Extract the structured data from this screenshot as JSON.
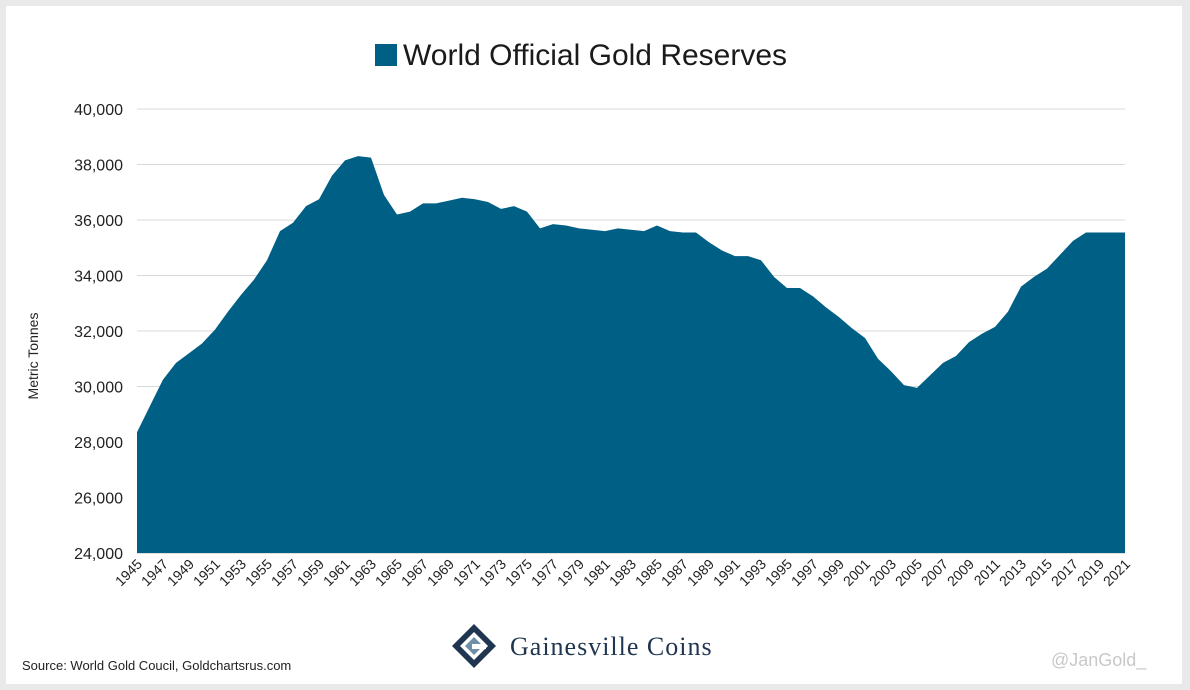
{
  "chart_data": {
    "type": "area",
    "title": "World Official Gold Reserves",
    "ylabel": "Metric Tonnes",
    "xlabel": "",
    "ylim": [
      24000,
      40000
    ],
    "yticks": [
      "24,000",
      "26,000",
      "28,000",
      "30,000",
      "32,000",
      "34,000",
      "36,000",
      "38,000",
      "40,000"
    ],
    "ytick_values": [
      24000,
      26000,
      28000,
      30000,
      32000,
      34000,
      36000,
      38000,
      40000
    ],
    "grid": true,
    "legend": "top-center",
    "color": "#005f84",
    "x": [
      1945,
      1946,
      1947,
      1948,
      1949,
      1950,
      1951,
      1952,
      1953,
      1954,
      1955,
      1956,
      1957,
      1958,
      1959,
      1960,
      1961,
      1962,
      1963,
      1964,
      1965,
      1966,
      1967,
      1968,
      1969,
      1970,
      1971,
      1972,
      1973,
      1974,
      1975,
      1976,
      1977,
      1978,
      1979,
      1980,
      1981,
      1982,
      1983,
      1984,
      1985,
      1986,
      1987,
      1988,
      1989,
      1990,
      1991,
      1992,
      1993,
      1994,
      1995,
      1996,
      1997,
      1998,
      1999,
      2000,
      2001,
      2002,
      2003,
      2004,
      2005,
      2006,
      2007,
      2008,
      2009,
      2010,
      2011,
      2012,
      2013,
      2014,
      2015,
      2016,
      2017,
      2018,
      2019,
      2020,
      2021
    ],
    "values": [
      28350,
      29300,
      30250,
      30850,
      31200,
      31550,
      32050,
      32700,
      33300,
      33850,
      34550,
      35600,
      35900,
      36500,
      36750,
      37600,
      38150,
      38300,
      38250,
      36900,
      36200,
      36300,
      36600,
      36600,
      36700,
      36800,
      36750,
      36650,
      36400,
      36500,
      36300,
      35700,
      35850,
      35800,
      35700,
      35650,
      35600,
      35700,
      35650,
      35600,
      35800,
      35600,
      35550,
      35550,
      35200,
      34900,
      34700,
      34700,
      34550,
      33950,
      33550,
      33550,
      33250,
      32850,
      32500,
      32100,
      31750,
      31000,
      30550,
      30050,
      29950,
      30400,
      30850,
      31100,
      31600,
      31900,
      32150,
      32700,
      33600,
      33950,
      34250,
      34750,
      35250,
      35550,
      35550,
      35550,
      35550
    ],
    "xticks": [
      "1945",
      "1947",
      "1949",
      "1951",
      "1953",
      "1955",
      "1957",
      "1959",
      "1961",
      "1963",
      "1965",
      "1967",
      "1969",
      "1971",
      "1973",
      "1975",
      "1977",
      "1979",
      "1981",
      "1983",
      "1985",
      "1987",
      "1989",
      "1991",
      "1993",
      "1995",
      "1997",
      "1999",
      "2001",
      "2003",
      "2005",
      "2007",
      "2009",
      "2011",
      "2013",
      "2015",
      "2017",
      "2019",
      "2021"
    ]
  },
  "footer": {
    "source": "Source: World Gold Coucil, Goldchartsrus.com",
    "brand": "Gainesville Coins",
    "watermark": "@JanGold_"
  }
}
